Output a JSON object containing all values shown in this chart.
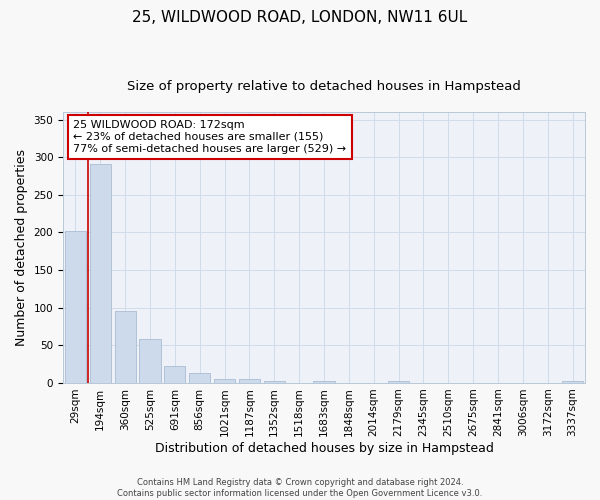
{
  "title": "25, WILDWOOD ROAD, LONDON, NW11 6UL",
  "subtitle": "Size of property relative to detached houses in Hampstead",
  "xlabel": "Distribution of detached houses by size in Hampstead",
  "ylabel": "Number of detached properties",
  "categories": [
    "29sqm",
    "194sqm",
    "360sqm",
    "525sqm",
    "691sqm",
    "856sqm",
    "1021sqm",
    "1187sqm",
    "1352sqm",
    "1518sqm",
    "1683sqm",
    "1848sqm",
    "2014sqm",
    "2179sqm",
    "2345sqm",
    "2510sqm",
    "2675sqm",
    "2841sqm",
    "3006sqm",
    "3172sqm",
    "3337sqm"
  ],
  "values": [
    202,
    291,
    96,
    58,
    23,
    13,
    5,
    5,
    3,
    0,
    2,
    0,
    0,
    2,
    0,
    0,
    0,
    0,
    0,
    0,
    2
  ],
  "bar_color": "#ccdaeb",
  "bar_edge_color": "#aabdd4",
  "annotation_text": "25 WILDWOOD ROAD: 172sqm\n← 23% of detached houses are smaller (155)\n77% of semi-detached houses are larger (529) →",
  "annotation_box_color": "#ffffff",
  "annotation_box_edge": "#cc0000",
  "vline_color": "#cc0000",
  "grid_color": "#d0dcea",
  "bg_color": "#eef2f8",
  "footer": "Contains HM Land Registry data © Crown copyright and database right 2024.\nContains public sector information licensed under the Open Government Licence v3.0.",
  "ylim": [
    0,
    360
  ],
  "title_fontsize": 11,
  "subtitle_fontsize": 9.5,
  "tick_fontsize": 7.5,
  "ylabel_fontsize": 9,
  "xlabel_fontsize": 9,
  "footer_fontsize": 6,
  "annotation_fontsize": 8
}
